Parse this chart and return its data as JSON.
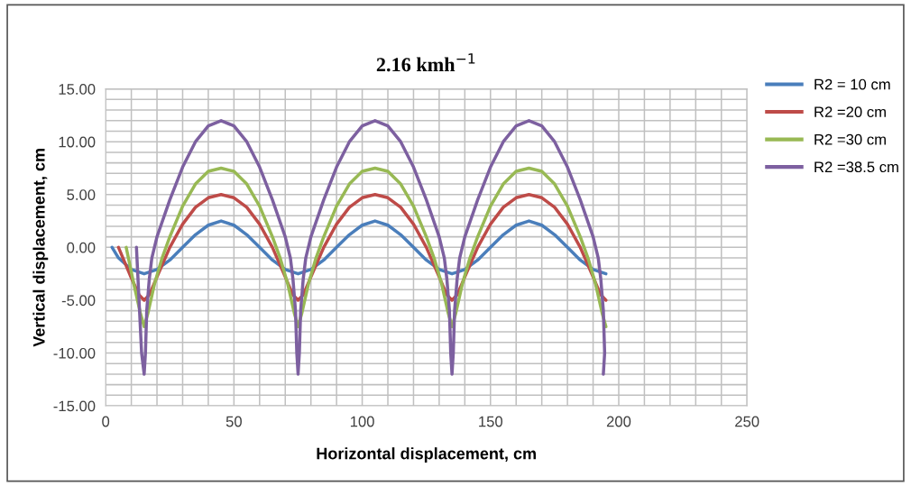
{
  "chart_data": {
    "type": "line",
    "title": "2.16 kmh$^{−1}$",
    "xlabel": "Horizontal displacement, cm",
    "ylabel": "Vertical displacement, cm",
    "series": [
      {
        "name": "R2 = 10 cm",
        "color": "#4a7ebb",
        "x": [
          2.5,
          5,
          10,
          15,
          20,
          25,
          30,
          35,
          40,
          45,
          50,
          55,
          60,
          65,
          70,
          75,
          80,
          85,
          90,
          95,
          100,
          105,
          110,
          115,
          120,
          125,
          130,
          135,
          140,
          145,
          150,
          155,
          160,
          165,
          170,
          175,
          180,
          185,
          190,
          195
        ],
        "values": [
          0,
          -1,
          -2.1,
          -2.5,
          -2.1,
          -1.2,
          0,
          1.2,
          2.1,
          2.5,
          2.1,
          1.2,
          0,
          -1.2,
          -2.1,
          -2.5,
          -2.1,
          -1.2,
          0,
          1.2,
          2.1,
          2.5,
          2.1,
          1.2,
          0,
          -1.2,
          -2.1,
          -2.5,
          -2.1,
          -1.2,
          0,
          1.2,
          2.1,
          2.5,
          2.1,
          1.2,
          0,
          -1.2,
          -2.1,
          -2.5
        ]
      },
      {
        "name": "R2 =20 cm",
        "color": "#be4b48",
        "x": [
          5,
          10,
          13,
          15,
          17,
          20,
          25,
          30,
          35,
          40,
          45,
          50,
          55,
          60,
          65,
          70,
          73,
          75,
          77,
          80,
          85,
          90,
          95,
          100,
          105,
          110,
          115,
          120,
          125,
          130,
          133,
          135,
          137,
          140,
          145,
          150,
          155,
          160,
          165,
          170,
          175,
          180,
          185,
          190,
          193,
          195
        ],
        "values": [
          0,
          -2.9,
          -4.5,
          -5,
          -4.5,
          -2.8,
          0,
          2.2,
          3.8,
          4.7,
          5,
          4.7,
          3.8,
          2.2,
          0,
          -2.8,
          -4.5,
          -5,
          -4.5,
          -2.8,
          0,
          2.2,
          3.8,
          4.7,
          5,
          4.7,
          3.8,
          2.2,
          0,
          -2.8,
          -4.5,
          -5,
          -4.5,
          -2.8,
          0,
          2.2,
          3.8,
          4.7,
          5,
          4.7,
          3.8,
          2.2,
          0,
          -2.8,
          -4.5,
          -5
        ]
      },
      {
        "name": "R2 =30 cm",
        "color": "#98b954",
        "x": [
          8,
          11,
          13.5,
          15,
          16.5,
          19,
          22,
          25,
          30,
          35,
          40,
          45,
          50,
          55,
          60,
          65,
          68,
          71,
          73.5,
          75,
          76.5,
          79,
          82,
          85,
          90,
          95,
          100,
          105,
          110,
          115,
          120,
          125,
          128,
          131,
          133.5,
          135,
          136.5,
          139,
          142,
          145,
          150,
          155,
          160,
          165,
          170,
          175,
          180,
          185,
          188,
          191,
          193.5,
          195
        ],
        "values": [
          0,
          -3.5,
          -6.2,
          -7.5,
          -6.2,
          -3.5,
          -1,
          1,
          3.9,
          6,
          7.2,
          7.5,
          7.2,
          6,
          3.9,
          1,
          -1,
          -3.5,
          -6.2,
          -7.5,
          -6.2,
          -3.5,
          -1,
          1,
          3.9,
          6,
          7.2,
          7.5,
          7.2,
          6,
          3.9,
          1,
          -1,
          -3.5,
          -6.2,
          -7.5,
          -6.2,
          -3.5,
          -1,
          1,
          3.9,
          6,
          7.2,
          7.5,
          7.2,
          6,
          3.9,
          1,
          -1,
          -3.5,
          -6.2,
          -7.5
        ]
      },
      {
        "name": "R2 =38.5 cm",
        "color": "#7d60a0",
        "x": [
          12,
          13,
          14,
          15,
          15.5,
          16,
          17,
          18,
          20,
          25,
          30,
          35,
          40,
          45,
          50,
          55,
          60,
          65,
          70,
          72,
          73,
          74,
          74.5,
          75,
          75.5,
          76,
          77,
          78,
          80,
          85,
          90,
          95,
          100,
          105,
          110,
          115,
          120,
          125,
          130,
          132,
          133,
          134,
          134.5,
          135,
          135.5,
          136,
          137,
          138,
          140,
          145,
          150,
          155,
          160,
          165,
          170,
          175,
          180,
          185,
          190,
          192,
          193,
          194,
          194.5,
          194
        ],
        "values": [
          0,
          -5,
          -10,
          -12,
          -10,
          -6,
          -3,
          -1,
          1,
          4.5,
          7.6,
          10,
          11.5,
          12,
          11.5,
          10,
          7.6,
          4.5,
          1,
          -1,
          -3,
          -6,
          -10,
          -12,
          -10,
          -6,
          -3,
          -1,
          1,
          4.5,
          7.6,
          10,
          11.5,
          12,
          11.5,
          10,
          7.6,
          4.5,
          1,
          -1,
          -3,
          -6,
          -10,
          -12,
          -10,
          -6,
          -3,
          -1,
          1,
          4.5,
          7.6,
          10,
          11.5,
          12,
          11.5,
          10,
          7.6,
          4.5,
          1,
          -1,
          -3,
          -6,
          -10,
          -12
        ]
      }
    ],
    "xlim": [
      0,
      250
    ],
    "ylim": [
      -15,
      15
    ],
    "xticks": [
      0,
      {
        "value": 10,
        "label": null
      },
      {
        "value": 20,
        "label": null
      },
      {
        "value": 30,
        "label": null
      },
      {
        "value": 40,
        "label": null
      },
      50,
      {
        "value": 60,
        "label": null
      },
      {
        "value": 70,
        "label": null
      },
      {
        "value": 80,
        "label": null
      },
      {
        "value": 90,
        "label": null
      },
      100,
      {
        "value": 110,
        "label": null
      },
      {
        "value": 120,
        "label": null
      },
      {
        "value": 130,
        "label": null
      },
      {
        "value": 140,
        "label": null
      },
      150,
      {
        "value": 160,
        "label": null
      },
      {
        "value": 170,
        "label": null
      },
      {
        "value": 180,
        "label": null
      },
      {
        "value": 190,
        "label": null
      },
      200,
      {
        "value": 210,
        "label": null
      },
      {
        "value": 220,
        "label": null
      },
      {
        "value": 230,
        "label": null
      },
      {
        "value": 240,
        "label": null
      },
      250
    ],
    "yticks": [
      {
        "value": -15,
        "label": "-15.00"
      },
      {
        "value": -14,
        "label": null
      },
      {
        "value": -13,
        "label": null
      },
      {
        "value": -12,
        "label": null
      },
      {
        "value": -11,
        "label": null
      },
      {
        "value": -10,
        "label": "-10.00"
      },
      {
        "value": -9,
        "label": null
      },
      {
        "value": -8,
        "label": null
      },
      {
        "value": -7,
        "label": null
      },
      {
        "value": -6,
        "label": null
      },
      {
        "value": -5,
        "label": "-5.00"
      },
      {
        "value": -4,
        "label": null
      },
      {
        "value": -3,
        "label": null
      },
      {
        "value": -2,
        "label": null
      },
      {
        "value": -1,
        "label": null
      },
      {
        "value": 0,
        "label": "0.00"
      },
      {
        "value": 1,
        "label": null
      },
      {
        "value": 2,
        "label": null
      },
      {
        "value": 3,
        "label": null
      },
      {
        "value": 4,
        "label": null
      },
      {
        "value": 5,
        "label": "5.00"
      },
      {
        "value": 6,
        "label": null
      },
      {
        "value": 7,
        "label": null
      },
      {
        "value": 8,
        "label": null
      },
      {
        "value": 9,
        "label": null
      },
      {
        "value": 10,
        "label": "10.00"
      },
      {
        "value": 11,
        "label": null
      },
      {
        "value": 12,
        "label": null
      },
      {
        "value": 13,
        "label": null
      },
      {
        "value": 14,
        "label": null
      },
      {
        "value": 15,
        "label": "15.00"
      }
    ],
    "grid": true,
    "legend": "right",
    "marker": "none",
    "line_style": "solid"
  }
}
